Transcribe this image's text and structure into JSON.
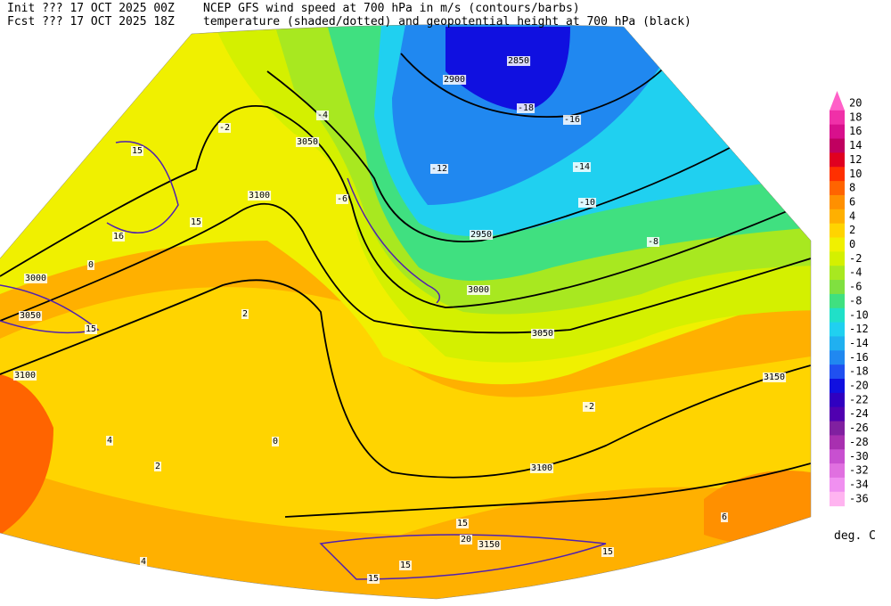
{
  "header": {
    "init": "Init  ??? 17 OCT 2025 00Z",
    "fcst": "Fcst ??? 17 OCT 2025 18Z",
    "title": "NCEP GFS wind speed at 700 hPa in m/s (contours/barbs)",
    "subtitle": "temperature (shaded/dotted) and geopotential height at 700 hPa (black)"
  },
  "colorbar": {
    "values": [
      20,
      18,
      16,
      14,
      12,
      10,
      8,
      6,
      4,
      2,
      0,
      -2,
      -4,
      -6,
      -8,
      -10,
      -12,
      -14,
      -16,
      -18,
      -20,
      -22,
      -24,
      -26,
      -28,
      -30,
      -32,
      -34,
      -36
    ],
    "colors": [
      "#ff60c8",
      "#f030a8",
      "#d8108c",
      "#c00060",
      "#e00020",
      "#ff3000",
      "#ff6400",
      "#ff9000",
      "#ffb000",
      "#ffd400",
      "#f0f000",
      "#d4f000",
      "#a8e820",
      "#80e040",
      "#40e080",
      "#20e0c8",
      "#20d0f0",
      "#20b0f0",
      "#2088f0",
      "#2050f0",
      "#1010e0",
      "#3000c0",
      "#5000b0",
      "#8020a0",
      "#a830b0",
      "#c850d0",
      "#e070e0",
      "#f090f0",
      "#ffb4f0"
    ],
    "unit": "deg. C"
  },
  "map": {
    "height_labels": [
      3050,
      3000,
      2950,
      2900,
      2850,
      3100,
      3150,
      3000,
      3050,
      3100,
      3150,
      3050,
      3100
    ],
    "temperature_labels": [
      -2,
      -4,
      -6,
      -8,
      -10,
      -12,
      -14,
      -16,
      -18,
      0,
      2,
      4,
      -2,
      0,
      2,
      4,
      6
    ],
    "wind_labels": [
      15,
      15,
      16,
      15,
      15,
      20,
      15,
      15,
      15
    ]
  }
}
